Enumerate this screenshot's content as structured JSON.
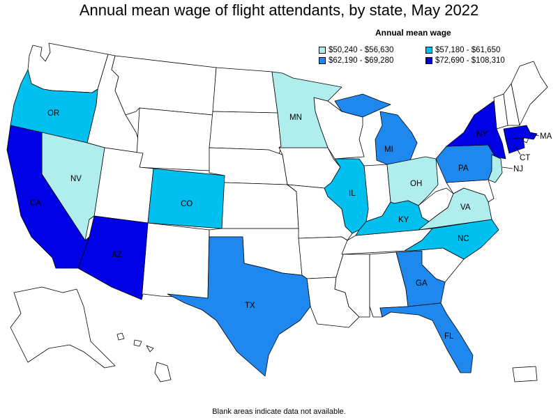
{
  "title": "Annual mean wage of flight attendants, by state, May 2022",
  "legend": {
    "title": "Annual mean wage",
    "bins": [
      {
        "label": "$50,240 - $56,630",
        "color": "#b0eeee"
      },
      {
        "label": "$57,180 - $61,650",
        "color": "#00c0f0"
      },
      {
        "label": "$62,190 - $69,280",
        "color": "#1e88ee"
      },
      {
        "label": "$72,690 - $108,310",
        "color": "#0000e6"
      }
    ]
  },
  "note": "Blank areas indicate data not available.",
  "states": {
    "OR": {
      "bin": 1
    },
    "NV": {
      "bin": 0
    },
    "CA": {
      "bin": 3
    },
    "AZ": {
      "bin": 3
    },
    "CO": {
      "bin": 1
    },
    "TX": {
      "bin": 2
    },
    "MN": {
      "bin": 0
    },
    "IL": {
      "bin": 1
    },
    "MI": {
      "bin": 2
    },
    "OH": {
      "bin": 0
    },
    "KY": {
      "bin": 1
    },
    "GA": {
      "bin": 2
    },
    "FL": {
      "bin": 2
    },
    "NC": {
      "bin": 1
    },
    "VA": {
      "bin": 0
    },
    "PA": {
      "bin": 2
    },
    "NY": {
      "bin": 3
    },
    "NJ": {
      "bin": 0
    },
    "CT": {
      "bin": 3
    },
    "MA": {
      "bin": 3
    }
  }
}
